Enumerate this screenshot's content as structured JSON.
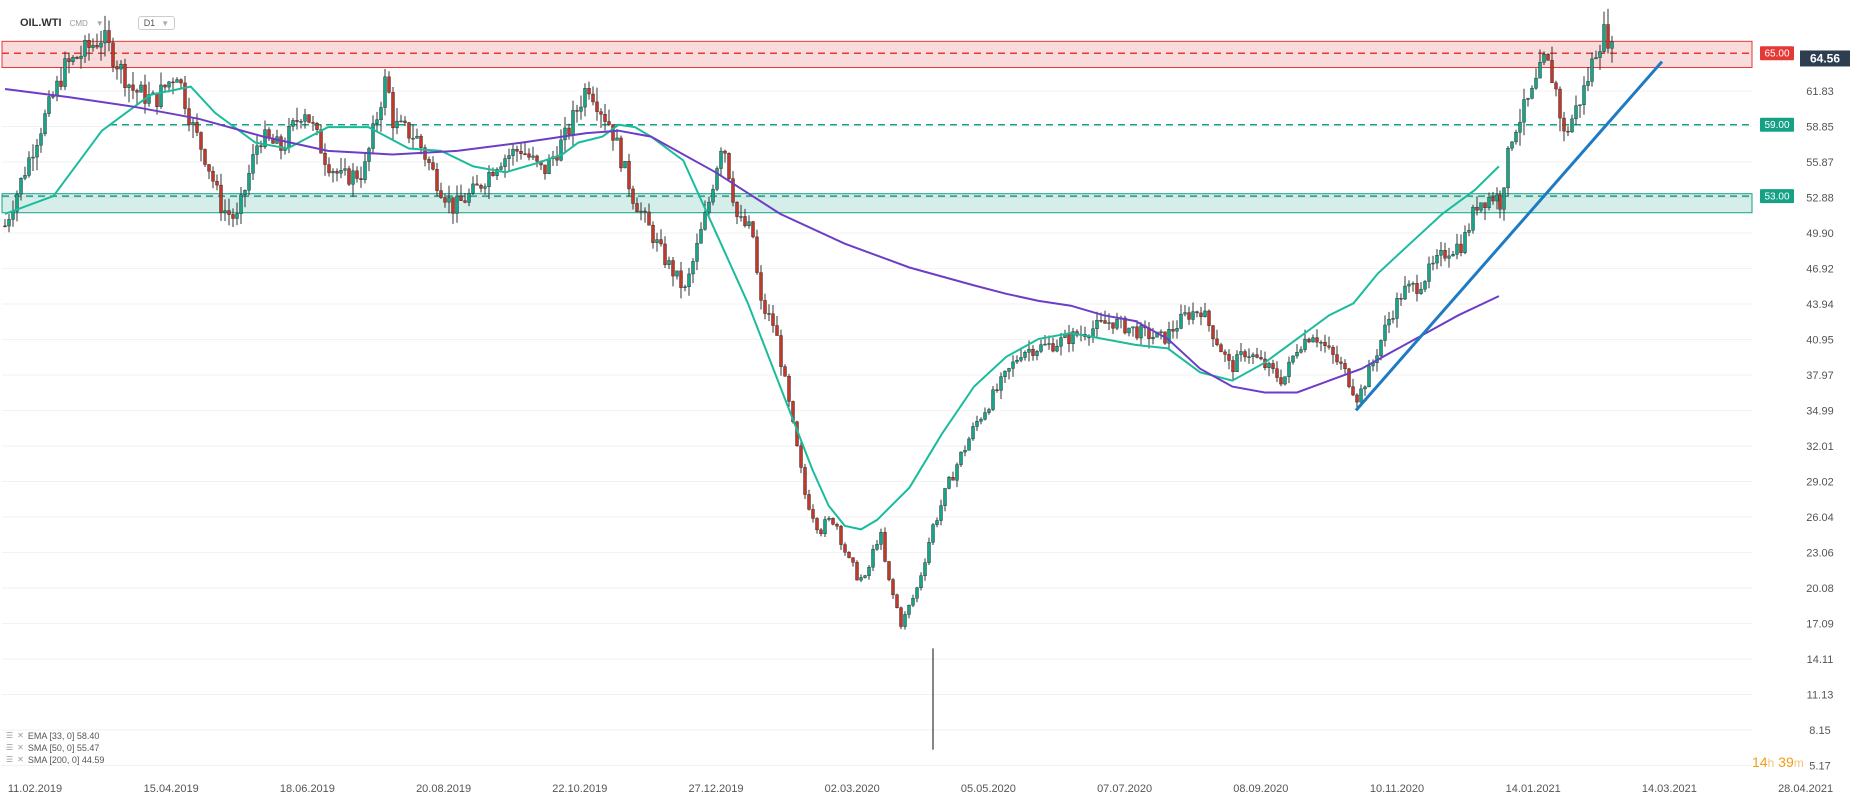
{
  "header": {
    "symbol": "OIL.WTI",
    "market": "CMD",
    "timeframe": "D1"
  },
  "timer": {
    "hours": "14",
    "h": "h",
    "minutes": "39",
    "m": "m"
  },
  "indicators": [
    {
      "label": "EMA [33, 0] 58.40",
      "color": "#1abc9c"
    },
    {
      "label": "SMA [50, 0] 55.47",
      "color": "#1abc9c"
    },
    {
      "label": "SMA [200, 0] 44.59",
      "color": "#6c3ec7"
    }
  ],
  "chart_data": {
    "type": "candlestick",
    "y_ticks": [
      "61.83",
      "58.85",
      "55.87",
      "52.88",
      "49.90",
      "46.92",
      "43.94",
      "40.95",
      "37.97",
      "34.99",
      "32.01",
      "29.02",
      "26.04",
      "23.06",
      "20.08",
      "17.09",
      "14.11",
      "11.13",
      "8.15",
      "5.17"
    ],
    "x_ticks": [
      "11.02.2019",
      "15.04.2019",
      "18.06.2019",
      "20.08.2019",
      "22.10.2019",
      "27.12.2019",
      "02.03.2020",
      "05.05.2020",
      "07.07.2020",
      "08.09.2020",
      "10.11.2020",
      "14.01.2021",
      "14.03.2021",
      "28.04.2021"
    ],
    "last_price": "64.56",
    "levels": [
      {
        "value": 65.0,
        "label": "65.00",
        "color": "#e53935"
      },
      {
        "value": 59.0,
        "label": "59.00",
        "color": "#16a085"
      },
      {
        "value": 53.0,
        "label": "53.00",
        "color": "#16a085"
      }
    ],
    "zones": [
      {
        "from": 63.8,
        "to": 66.0,
        "color": "#e53935"
      },
      {
        "from": 51.6,
        "to": 53.2,
        "color": "#16a085"
      }
    ],
    "trendline": {
      "from": [
        "10.2020",
        35.7
      ],
      "to": [
        "03.2021",
        67.4
      ]
    },
    "price_path": [
      [
        0.0,
        50.5
      ],
      [
        0.02,
        57.5
      ],
      [
        0.04,
        63.8
      ],
      [
        0.065,
        66.4
      ],
      [
        0.085,
        62.0
      ],
      [
        0.1,
        61.0
      ],
      [
        0.115,
        63.5
      ],
      [
        0.125,
        59.0
      ],
      [
        0.135,
        56.0
      ],
      [
        0.145,
        52.0
      ],
      [
        0.155,
        51.0
      ],
      [
        0.17,
        58.0
      ],
      [
        0.185,
        57.0
      ],
      [
        0.2,
        60.5
      ],
      [
        0.215,
        56.0
      ],
      [
        0.225,
        54.5
      ],
      [
        0.24,
        55.0
      ],
      [
        0.255,
        63.0
      ],
      [
        0.26,
        59.0
      ],
      [
        0.275,
        58.0
      ],
      [
        0.29,
        54.0
      ],
      [
        0.3,
        52.0
      ],
      [
        0.315,
        53.5
      ],
      [
        0.33,
        56.0
      ],
      [
        0.345,
        57.0
      ],
      [
        0.36,
        55.0
      ],
      [
        0.375,
        58.0
      ],
      [
        0.385,
        61.0
      ],
      [
        0.39,
        62.5
      ],
      [
        0.4,
        60.0
      ],
      [
        0.405,
        59.0
      ],
      [
        0.42,
        53.0
      ],
      [
        0.44,
        48.0
      ],
      [
        0.455,
        45.0
      ],
      [
        0.47,
        52.0
      ],
      [
        0.48,
        58.0
      ],
      [
        0.49,
        51.0
      ],
      [
        0.5,
        50.0
      ],
      [
        0.505,
        44.0
      ],
      [
        0.515,
        42.0
      ],
      [
        0.525,
        35.0
      ],
      [
        0.535,
        28.0
      ],
      [
        0.545,
        25.0
      ],
      [
        0.555,
        26.0
      ],
      [
        0.565,
        22.0
      ],
      [
        0.575,
        20.5
      ],
      [
        0.585,
        25.0
      ],
      [
        0.59,
        21.0
      ],
      [
        0.6,
        17.0
      ],
      [
        0.61,
        20.0
      ],
      [
        0.62,
        25.0
      ],
      [
        0.635,
        30.0
      ],
      [
        0.65,
        34.0
      ],
      [
        0.665,
        37.0
      ],
      [
        0.68,
        40.0
      ],
      [
        0.7,
        40.5
      ],
      [
        0.72,
        41.5
      ],
      [
        0.74,
        42.5
      ],
      [
        0.76,
        41.5
      ],
      [
        0.775,
        41.0
      ],
      [
        0.79,
        43.0
      ],
      [
        0.8,
        43.5
      ],
      [
        0.81,
        41.0
      ],
      [
        0.82,
        38.5
      ],
      [
        0.83,
        40.0
      ],
      [
        0.84,
        39.0
      ],
      [
        0.855,
        37.5
      ],
      [
        0.865,
        40.5
      ],
      [
        0.875,
        41.5
      ],
      [
        0.885,
        40.0
      ],
      [
        0.895,
        38.5
      ],
      [
        0.905,
        36.0
      ],
      [
        0.915,
        39.0
      ],
      [
        0.925,
        42.5
      ],
      [
        0.935,
        45.0
      ],
      [
        0.945,
        45.5
      ],
      [
        0.955,
        47.0
      ],
      [
        0.965,
        48.5
      ],
      [
        0.975,
        49.0
      ],
      [
        0.985,
        52.5
      ],
      [
        0.995,
        53.0
      ],
      [
        1.0,
        52.8
      ]
    ],
    "price_path_2": [
      [
        0.0,
        52.5
      ],
      [
        0.04,
        58.5
      ],
      [
        0.1,
        61.5
      ],
      [
        0.14,
        64.5
      ],
      [
        0.17,
        62.5
      ],
      [
        0.2,
        58.0
      ],
      [
        0.24,
        60.5
      ],
      [
        0.27,
        62.5
      ],
      [
        0.3,
        65.5
      ],
      [
        0.33,
        67.0
      ],
      [
        0.355,
        64.5
      ]
    ],
    "ema33": [
      [
        0.0,
        51.5
      ],
      [
        0.03,
        53.0
      ],
      [
        0.06,
        58.5
      ],
      [
        0.09,
        61.5
      ],
      [
        0.115,
        62.2
      ],
      [
        0.13,
        60.0
      ],
      [
        0.155,
        57.5
      ],
      [
        0.175,
        57.0
      ],
      [
        0.2,
        58.8
      ],
      [
        0.225,
        58.8
      ],
      [
        0.25,
        57.0
      ],
      [
        0.27,
        56.8
      ],
      [
        0.29,
        55.5
      ],
      [
        0.31,
        55.0
      ],
      [
        0.33,
        55.8
      ],
      [
        0.345,
        56.5
      ],
      [
        0.355,
        57.5
      ],
      [
        0.37,
        58.0
      ],
      [
        0.38,
        59.0
      ],
      [
        0.39,
        58.8
      ],
      [
        0.4,
        58.0
      ],
      [
        0.42,
        56.0
      ],
      [
        0.44,
        50.0
      ],
      [
        0.46,
        44.0
      ],
      [
        0.48,
        37.0
      ],
      [
        0.5,
        30.0
      ],
      [
        0.51,
        27.0
      ],
      [
        0.52,
        25.3
      ],
      [
        0.53,
        25.0
      ],
      [
        0.54,
        25.8
      ],
      [
        0.56,
        28.5
      ],
      [
        0.58,
        33.0
      ],
      [
        0.6,
        37.0
      ],
      [
        0.62,
        39.5
      ],
      [
        0.64,
        41.0
      ],
      [
        0.66,
        41.5
      ],
      [
        0.68,
        41.0
      ],
      [
        0.7,
        40.5
      ],
      [
        0.72,
        40.2
      ],
      [
        0.74,
        38.2
      ],
      [
        0.76,
        37.5
      ],
      [
        0.78,
        39.0
      ],
      [
        0.8,
        41.0
      ],
      [
        0.82,
        43.0
      ],
      [
        0.835,
        44.0
      ],
      [
        0.85,
        46.5
      ],
      [
        0.87,
        49.0
      ],
      [
        0.89,
        51.5
      ],
      [
        0.91,
        53.5
      ],
      [
        0.925,
        55.5
      ]
    ],
    "sma200": [
      [
        0.0,
        62.0
      ],
      [
        0.04,
        61.3
      ],
      [
        0.08,
        60.5
      ],
      [
        0.12,
        59.5
      ],
      [
        0.16,
        58.0
      ],
      [
        0.2,
        56.8
      ],
      [
        0.24,
        56.5
      ],
      [
        0.28,
        56.8
      ],
      [
        0.32,
        57.5
      ],
      [
        0.36,
        58.3
      ],
      [
        0.38,
        58.5
      ],
      [
        0.4,
        58.0
      ],
      [
        0.44,
        55.0
      ],
      [
        0.48,
        51.5
      ],
      [
        0.52,
        49.0
      ],
      [
        0.56,
        47.0
      ],
      [
        0.6,
        45.5
      ],
      [
        0.62,
        44.8
      ],
      [
        0.64,
        44.2
      ],
      [
        0.66,
        43.8
      ],
      [
        0.68,
        43.0
      ],
      [
        0.7,
        42.5
      ],
      [
        0.72,
        41.0
      ],
      [
        0.74,
        38.5
      ],
      [
        0.76,
        37.0
      ],
      [
        0.78,
        36.5
      ],
      [
        0.8,
        36.5
      ],
      [
        0.82,
        37.5
      ],
      [
        0.84,
        38.5
      ],
      [
        0.86,
        40.0
      ],
      [
        0.88,
        41.5
      ],
      [
        0.9,
        43.0
      ],
      [
        0.925,
        44.6
      ]
    ]
  }
}
